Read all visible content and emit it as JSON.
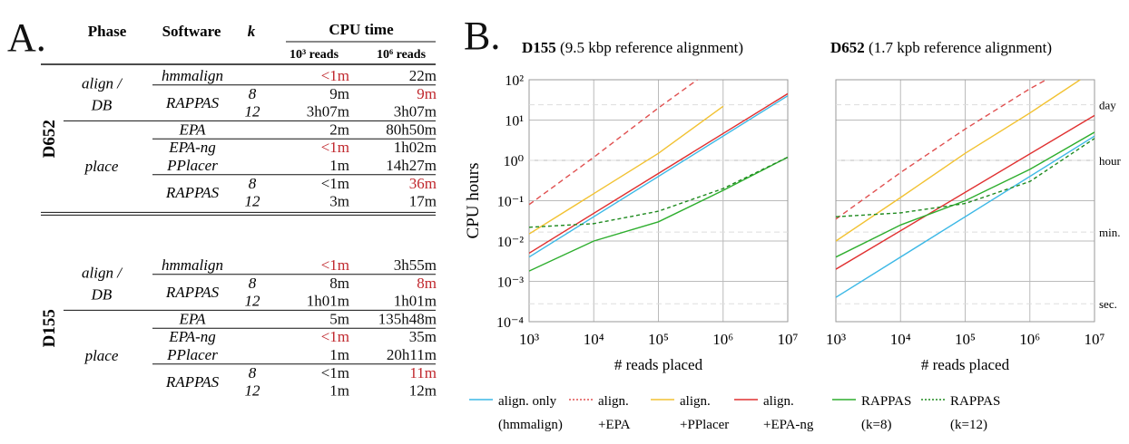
{
  "panel_a": {
    "letter": "A.",
    "headers": {
      "phase": "Phase",
      "software": "Software",
      "k": "k",
      "cpu_time": "CPU time",
      "reads_small": "10³ reads",
      "reads_large": "10⁶ reads"
    },
    "highlight_color": "#c0282d",
    "groups": [
      {
        "dataset": "D652",
        "phases": [
          {
            "label": "align /\nDB",
            "rows": [
              {
                "software": "hmmalign",
                "k": "",
                "t1": "<1m",
                "t1_red": true,
                "t2": "22m",
                "t2_red": false
              },
              {
                "software": "RAPPAS",
                "k": "8",
                "t1": "9m",
                "t1_red": false,
                "t2": "9m",
                "t2_red": true
              },
              {
                "software": "",
                "k": "12",
                "t1": "3h07m",
                "t1_red": false,
                "t2": "3h07m",
                "t2_red": false
              }
            ]
          },
          {
            "label": "place",
            "rows": [
              {
                "software": "EPA",
                "k": "",
                "t1": "2m",
                "t1_red": false,
                "t2": "80h50m",
                "t2_red": false
              },
              {
                "software": "EPA-ng",
                "k": "",
                "t1": "<1m",
                "t1_red": true,
                "t2": "1h02m",
                "t2_red": false
              },
              {
                "software": "PPlacer",
                "k": "",
                "t1": "1m",
                "t1_red": false,
                "t2": "14h27m",
                "t2_red": false
              },
              {
                "software": "RAPPAS",
                "k": "8",
                "t1": "<1m",
                "t1_red": false,
                "t2": "36m",
                "t2_red": true
              },
              {
                "software": "",
                "k": "12",
                "t1": "3m",
                "t1_red": false,
                "t2": "17m",
                "t2_red": false
              }
            ]
          }
        ]
      },
      {
        "dataset": "D155",
        "phases": [
          {
            "label": "align /\nDB",
            "rows": [
              {
                "software": "hmmalign",
                "k": "",
                "t1": "<1m",
                "t1_red": true,
                "t2": "3h55m",
                "t2_red": false
              },
              {
                "software": "RAPPAS",
                "k": "8",
                "t1": "8m",
                "t1_red": false,
                "t2": "8m",
                "t2_red": true
              },
              {
                "software": "",
                "k": "12",
                "t1": "1h01m",
                "t1_red": false,
                "t2": "1h01m",
                "t2_red": false
              }
            ]
          },
          {
            "label": "place",
            "rows": [
              {
                "software": "EPA",
                "k": "",
                "t1": "5m",
                "t1_red": false,
                "t2": "135h48m",
                "t2_red": false
              },
              {
                "software": "EPA-ng",
                "k": "",
                "t1": "<1m",
                "t1_red": true,
                "t2": "35m",
                "t2_red": false
              },
              {
                "software": "PPlacer",
                "k": "",
                "t1": "1m",
                "t1_red": false,
                "t2": "20h11m",
                "t2_red": false
              },
              {
                "software": "RAPPAS",
                "k": "8",
                "t1": "<1m",
                "t1_red": false,
                "t2": "11m",
                "t2_red": true
              },
              {
                "software": "",
                "k": "12",
                "t1": "1m",
                "t1_red": false,
                "t2": "12m",
                "t2_red": false
              }
            ]
          }
        ]
      }
    ]
  },
  "panel_b": {
    "letter": "B.",
    "ylabel": "CPU hours",
    "xlabel": "# reads placed",
    "colors": {
      "hmmalign": "#3cb8e6",
      "epa": "#e05050",
      "pplacer": "#f2c232",
      "epang": "#e03030",
      "rappas8": "#2eae2e",
      "rappas12": "#1f8a1f"
    },
    "legend": [
      {
        "key": "hmmalign",
        "line1": "align. only",
        "line2": "(hmmalign)",
        "dash": "solid"
      },
      {
        "key": "epa",
        "line1": "align.",
        "line2": "+EPA",
        "dash": "dotted"
      },
      {
        "key": "pplacer",
        "line1": "align.",
        "line2": "+PPlacer",
        "dash": "solid"
      },
      {
        "key": "epang",
        "line1": "align.",
        "line2": "+EPA-ng",
        "dash": "solid"
      },
      {
        "key": "rappas8",
        "line1": "RAPPAS",
        "line2": "(k=8)",
        "dash": "solid"
      },
      {
        "key": "rappas12",
        "line1": "RAPPAS",
        "line2": "(k=12)",
        "dash": "dotted"
      }
    ],
    "right_labels": [
      {
        "text": "day",
        "hours": 24
      },
      {
        "text": "hour",
        "hours": 1
      },
      {
        "text": "min.",
        "hours": 0.01667
      },
      {
        "text": "sec.",
        "hours": 0.000278
      }
    ],
    "x_ticks": [
      "10³",
      "10⁴",
      "10⁵",
      "10⁶",
      "10⁷"
    ],
    "y_ticks": [
      "10²",
      "10¹",
      "10⁰",
      "10⁻¹",
      "10⁻²",
      "10⁻³",
      "10⁻⁴"
    ]
  },
  "chart_data": [
    {
      "type": "line",
      "title_bold": "D155",
      "title_rest": " (9.5 kbp reference alignment)",
      "xscale": "log",
      "yscale": "log",
      "xlim": [
        1000,
        10000000
      ],
      "ylim": [
        0.0001,
        100
      ],
      "xlabel": "# reads placed",
      "ylabel": "CPU hours",
      "grid": true,
      "series": [
        {
          "key": "hmmalign",
          "name": "align. only (hmmalign)",
          "x": [
            1000,
            10000000
          ],
          "y": [
            0.004,
            40
          ]
        },
        {
          "key": "epa",
          "name": "align. +EPA",
          "x": [
            1000,
            10000,
            100000,
            400000
          ],
          "y": [
            0.08,
            1.2,
            20,
            100
          ]
        },
        {
          "key": "pplacer",
          "name": "align. +PPlacer",
          "x": [
            1000,
            10000,
            100000,
            1000000
          ],
          "y": [
            0.015,
            0.15,
            1.5,
            22
          ]
        },
        {
          "key": "epang",
          "name": "align. +EPA-ng",
          "x": [
            1000,
            10000000
          ],
          "y": [
            0.005,
            45
          ]
        },
        {
          "key": "rappas8",
          "name": "RAPPAS (k=8)",
          "x": [
            1000,
            10000,
            100000,
            1000000,
            10000000
          ],
          "y": [
            0.0018,
            0.01,
            0.03,
            0.18,
            1.2
          ]
        },
        {
          "key": "rappas12",
          "name": "RAPPAS (k=12)",
          "x": [
            1000,
            10000,
            100000,
            1000000,
            10000000
          ],
          "y": [
            0.022,
            0.027,
            0.055,
            0.2,
            1.2
          ]
        }
      ]
    },
    {
      "type": "line",
      "title_bold": "D652",
      "title_rest": " (1.7 kpb reference alignment)",
      "xscale": "log",
      "yscale": "log",
      "xlim": [
        1000,
        10000000
      ],
      "ylim": [
        0.0001,
        100
      ],
      "xlabel": "# reads placed",
      "ylabel": "",
      "grid": true,
      "series": [
        {
          "key": "hmmalign",
          "name": "align. only (hmmalign)",
          "x": [
            1000,
            10000000
          ],
          "y": [
            0.0004,
            4
          ]
        },
        {
          "key": "epa",
          "name": "align. +EPA",
          "x": [
            1000,
            10000,
            100000,
            1000000,
            1800000
          ],
          "y": [
            0.035,
            0.5,
            6,
            60,
            100
          ]
        },
        {
          "key": "pplacer",
          "name": "align. +PPlacer",
          "x": [
            1000,
            10000,
            100000,
            1000000,
            6000000
          ],
          "y": [
            0.01,
            0.12,
            1.5,
            15,
            100
          ]
        },
        {
          "key": "epang",
          "name": "align. +EPA-ng",
          "x": [
            1000,
            10000000
          ],
          "y": [
            0.002,
            13
          ]
        },
        {
          "key": "rappas8",
          "name": "RAPPAS (k=8)",
          "x": [
            1000,
            10000,
            100000,
            1000000,
            10000000
          ],
          "y": [
            0.004,
            0.025,
            0.1,
            0.6,
            5
          ]
        },
        {
          "key": "rappas12",
          "name": "RAPPAS (k=12)",
          "x": [
            1000,
            10000,
            100000,
            1000000,
            10000000
          ],
          "y": [
            0.04,
            0.05,
            0.085,
            0.3,
            3.5
          ]
        }
      ]
    }
  ]
}
